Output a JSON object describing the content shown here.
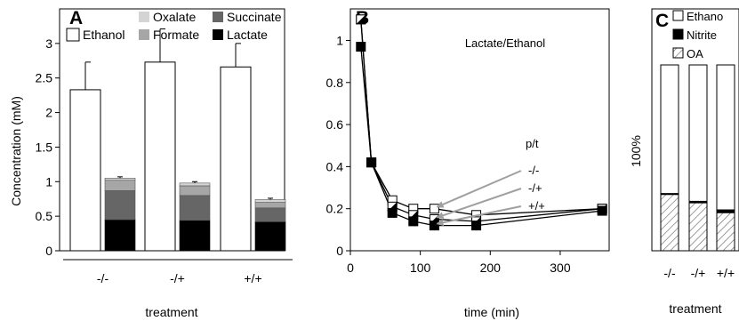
{
  "chart_data": [
    {
      "panel_label": "A",
      "type": "bar",
      "ylabel": "Concentration (mM)",
      "xlabel": "treatment",
      "ylim": [
        0,
        3.5
      ],
      "yticks": [
        "0",
        "0.5",
        "1",
        "1.5",
        "2",
        "2.5",
        "3"
      ],
      "ytick_values": [
        0,
        0.5,
        1,
        1.5,
        2,
        2.5,
        3
      ],
      "groups": [
        "-/-",
        "-/+",
        "+/+"
      ],
      "legend_position": "top",
      "series": [
        {
          "name": "Ethanol",
          "color": "#ffffff",
          "stack": "ethanol",
          "values": [
            2.33,
            2.73,
            2.66
          ],
          "errors": [
            0.4,
            0.48,
            0.34
          ]
        },
        {
          "name": "Lactate",
          "color": "#000000",
          "stack": "acids",
          "values": [
            0.45,
            0.44,
            0.42
          ],
          "errors": [
            0.09,
            0.08,
            0.03
          ]
        },
        {
          "name": "Succinate",
          "color": "#666666",
          "stack": "acids",
          "values": [
            0.42,
            0.36,
            0.2
          ],
          "errors": [
            0.05,
            0.05,
            0.02
          ]
        },
        {
          "name": "Formate",
          "color": "#a6a6a6",
          "stack": "acids",
          "values": [
            0.15,
            0.14,
            0.08
          ],
          "errors": [
            0,
            0,
            0
          ]
        },
        {
          "name": "Oxalate",
          "color": "#d4d4d4",
          "stack": "acids",
          "values": [
            0.03,
            0.04,
            0.04
          ],
          "errors": [
            0.02,
            0.02,
            0.02
          ]
        }
      ]
    },
    {
      "panel_label": "B",
      "type": "line",
      "annotation": "Lactate/Ethanol",
      "xlabel": "time (min)",
      "xlim": [
        0,
        370
      ],
      "ylim": [
        0,
        1.15
      ],
      "xticks": [
        "0",
        "100",
        "200",
        "300"
      ],
      "xtick_values": [
        0,
        100,
        200,
        300
      ],
      "yticks": [
        "0",
        "0.2",
        "0.4",
        "0.6",
        "0.8",
        "1"
      ],
      "ytick_values": [
        0,
        0.2,
        0.4,
        0.6,
        0.8,
        1
      ],
      "legend_title": "p/t",
      "series": [
        {
          "name": "-/-",
          "marker": "open",
          "x": [
            15,
            30,
            60,
            90,
            120,
            180,
            360
          ],
          "y": [
            1.1,
            0.42,
            0.24,
            0.2,
            0.2,
            0.17,
            0.2
          ]
        },
        {
          "name": "-/+",
          "marker": "half",
          "x": [
            15,
            30,
            60,
            90,
            120,
            180,
            360
          ],
          "y": [
            1.1,
            0.42,
            0.21,
            0.17,
            0.15,
            0.14,
            0.2
          ]
        },
        {
          "name": "+/+",
          "marker": "filled",
          "x": [
            15,
            30,
            60,
            90,
            120,
            180,
            360
          ],
          "y": [
            0.97,
            0.42,
            0.18,
            0.14,
            0.12,
            0.12,
            0.19
          ]
        }
      ]
    },
    {
      "panel_label": "C",
      "type": "bar",
      "ylabel": "100%",
      "xlabel": "treatment",
      "ylim": [
        0,
        1
      ],
      "groups": [
        "-/-",
        "-/+",
        "+/+"
      ],
      "legend_position": "top",
      "series": [
        {
          "name": "OA",
          "pattern": "hatch",
          "values": [
            0.303,
            0.258,
            0.205
          ]
        },
        {
          "name": "Nitrite",
          "color": "#000000",
          "values": [
            0.005,
            0.008,
            0.015
          ]
        },
        {
          "name": "Ethano",
          "color": "#ffffff",
          "values": [
            0.692,
            0.734,
            0.78
          ]
        }
      ]
    }
  ]
}
